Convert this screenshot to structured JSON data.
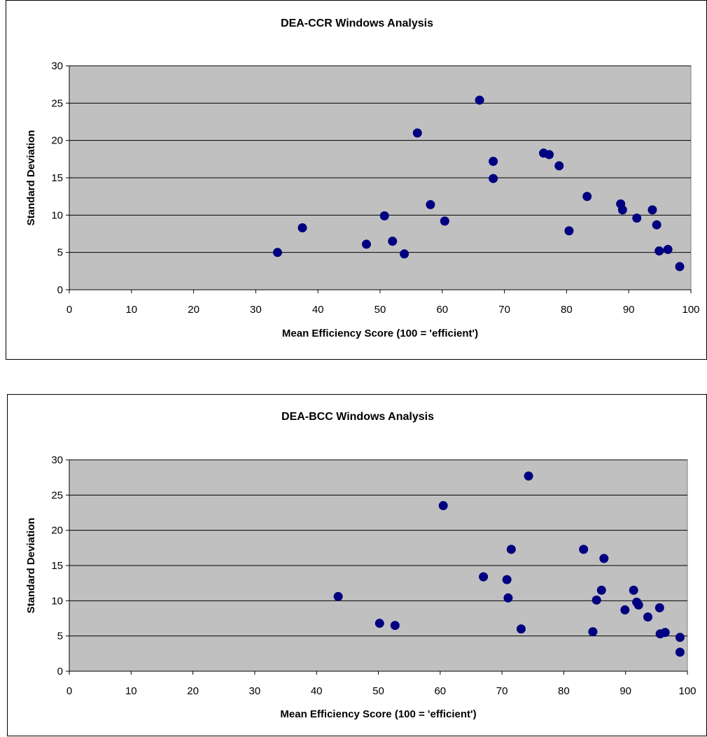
{
  "chart_data": [
    {
      "type": "scatter",
      "title": "DEA-CCR Windows Analysis",
      "xlabel": "Mean Efficiency Score (100 = 'efficient')",
      "ylabel": "Standard Deviation",
      "xlim": [
        0,
        100
      ],
      "ylim": [
        0,
        30
      ],
      "xticks": [
        "0",
        "10",
        "20",
        "30",
        "40",
        "50",
        "60",
        "70",
        "80",
        "90",
        "100"
      ],
      "yticks": [
        "0",
        "5",
        "10",
        "15",
        "20",
        "25",
        "30"
      ],
      "grid": "horizontal",
      "plot_background": "#c0c0c0",
      "marker_color": "#000080",
      "points": [
        {
          "x": 33.5,
          "y": 5.0
        },
        {
          "x": 37.5,
          "y": 8.3
        },
        {
          "x": 47.8,
          "y": 6.1
        },
        {
          "x": 50.7,
          "y": 9.9
        },
        {
          "x": 52.0,
          "y": 6.5
        },
        {
          "x": 53.9,
          "y": 4.8
        },
        {
          "x": 56.0,
          "y": 21.0
        },
        {
          "x": 58.1,
          "y": 11.4
        },
        {
          "x": 60.4,
          "y": 9.2
        },
        {
          "x": 66.0,
          "y": 25.4
        },
        {
          "x": 68.2,
          "y": 17.2
        },
        {
          "x": 68.2,
          "y": 14.9
        },
        {
          "x": 76.3,
          "y": 18.3
        },
        {
          "x": 77.2,
          "y": 18.1
        },
        {
          "x": 78.8,
          "y": 16.6
        },
        {
          "x": 80.4,
          "y": 7.9
        },
        {
          "x": 83.3,
          "y": 12.5
        },
        {
          "x": 88.7,
          "y": 11.5
        },
        {
          "x": 89.0,
          "y": 10.7
        },
        {
          "x": 91.3,
          "y": 9.6
        },
        {
          "x": 93.8,
          "y": 10.7
        },
        {
          "x": 94.5,
          "y": 8.7
        },
        {
          "x": 94.9,
          "y": 5.2
        },
        {
          "x": 96.3,
          "y": 5.4
        },
        {
          "x": 98.2,
          "y": 3.1
        }
      ]
    },
    {
      "type": "scatter",
      "title": "DEA-BCC Windows Analysis",
      "xlabel": "Mean Efficiency Score (100 = 'efficient')",
      "ylabel": "Standard Deviation",
      "xlim": [
        0,
        100
      ],
      "ylim": [
        0,
        30
      ],
      "xticks": [
        "0",
        "10",
        "20",
        "30",
        "40",
        "50",
        "60",
        "70",
        "80",
        "90",
        "100"
      ],
      "yticks": [
        "0",
        "5",
        "10",
        "15",
        "20",
        "25",
        "30"
      ],
      "grid": "horizontal",
      "plot_background": "#c0c0c0",
      "marker_color": "#000080",
      "points": [
        {
          "x": 43.5,
          "y": 10.6
        },
        {
          "x": 50.2,
          "y": 6.8
        },
        {
          "x": 52.7,
          "y": 6.5
        },
        {
          "x": 60.5,
          "y": 23.5
        },
        {
          "x": 67.0,
          "y": 13.4
        },
        {
          "x": 70.8,
          "y": 13.0
        },
        {
          "x": 71.0,
          "y": 10.4
        },
        {
          "x": 71.5,
          "y": 17.3
        },
        {
          "x": 73.1,
          "y": 6.0
        },
        {
          "x": 74.3,
          "y": 27.7
        },
        {
          "x": 83.2,
          "y": 17.3
        },
        {
          "x": 84.7,
          "y": 5.6
        },
        {
          "x": 85.3,
          "y": 10.1
        },
        {
          "x": 86.1,
          "y": 11.5
        },
        {
          "x": 86.5,
          "y": 16.0
        },
        {
          "x": 89.9,
          "y": 8.7
        },
        {
          "x": 91.3,
          "y": 11.5
        },
        {
          "x": 91.8,
          "y": 9.8
        },
        {
          "x": 92.1,
          "y": 9.4
        },
        {
          "x": 93.6,
          "y": 7.7
        },
        {
          "x": 95.5,
          "y": 9.0
        },
        {
          "x": 95.6,
          "y": 5.3
        },
        {
          "x": 96.4,
          "y": 5.5
        },
        {
          "x": 98.8,
          "y": 4.8
        },
        {
          "x": 98.8,
          "y": 2.7
        }
      ]
    }
  ]
}
